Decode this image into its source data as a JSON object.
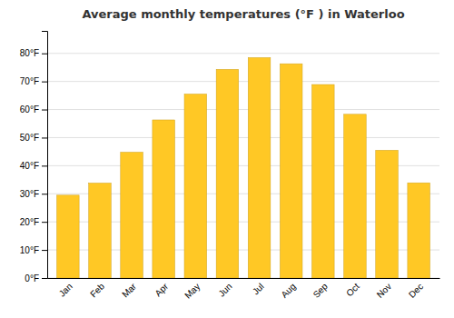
{
  "chart_data": {
    "type": "bar",
    "title": "Average monthly temperatures (°F ) in Waterloo",
    "categories": [
      "Jan",
      "Feb",
      "Mar",
      "Apr",
      "May",
      "Jun",
      "Jul",
      "Aug",
      "Sep",
      "Oct",
      "Nov",
      "Dec"
    ],
    "values": [
      29.5,
      33.8,
      44.8,
      56.3,
      65.5,
      74.3,
      78.5,
      76.3,
      68.9,
      58.3,
      45.5,
      33.9
    ],
    "color": "#FFC825",
    "ylim": [
      0,
      88
    ],
    "yticks": [
      {
        "value": 0,
        "label": "0°F"
      },
      {
        "value": 10,
        "label": "10°F"
      },
      {
        "value": 20,
        "label": "20°F"
      },
      {
        "value": 30,
        "label": "30°F"
      },
      {
        "value": 40,
        "label": "40°F"
      },
      {
        "value": 50,
        "label": "50°F"
      },
      {
        "value": 60,
        "label": "60°F"
      },
      {
        "value": 70,
        "label": "70°F"
      },
      {
        "value": 80,
        "label": "80°F"
      }
    ],
    "grid": true
  }
}
